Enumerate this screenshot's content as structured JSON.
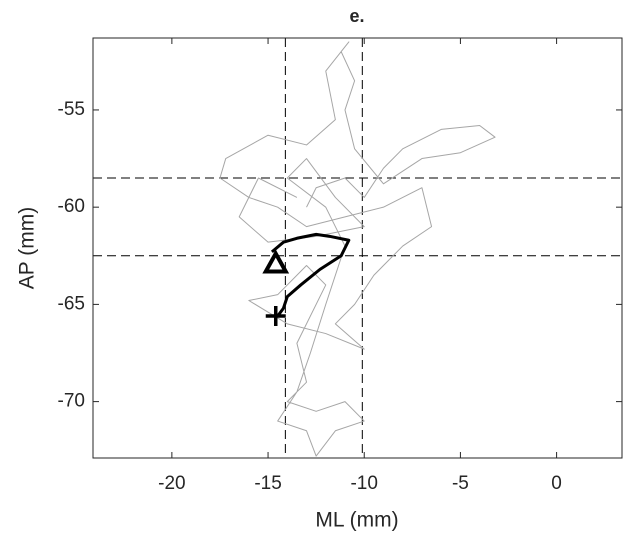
{
  "chart_data": {
    "type": "line",
    "title": "e.",
    "xlabel": "ML (mm)",
    "ylabel": "AP (mm)",
    "xlim": [
      -24.1,
      3.4
    ],
    "ylim": [
      -72.9,
      -51.3
    ],
    "xticks": [
      -20,
      -15,
      -10,
      -5,
      0
    ],
    "yticks": [
      -55,
      -60,
      -65,
      -70
    ],
    "reference_lines": {
      "x": [
        -14.1,
        -10.1
      ],
      "y": [
        -58.5,
        -62.5
      ],
      "color": "#000000"
    },
    "series": [
      {
        "color": "#a6a6a6",
        "width": 1,
        "x": [
          -13,
          -12.5,
          -11,
          -10,
          -9,
          -8,
          -6,
          -4,
          -3.2,
          -5,
          -7,
          -9,
          -10.5,
          -11,
          -10.5,
          -11.2,
          -10.8,
          -12,
          -11.5,
          -13,
          -15,
          -17.2,
          -17.5,
          -16,
          -14.5,
          -13,
          -11,
          -9,
          -7,
          -6.5,
          -8,
          -9.5,
          -10.5,
          -11.5,
          -10,
          -12,
          -14,
          -16,
          -14.5,
          -13,
          -12,
          -13.5,
          -13,
          -14,
          -12.5,
          -11,
          -10,
          -11.5,
          -12.5,
          -13,
          -14.5,
          -13.5,
          -12.8,
          -12,
          -11,
          -12,
          -14,
          -13,
          -11.5,
          -10,
          -12.5,
          -15,
          -16.5,
          -15.5,
          -13.5
        ],
        "values": [
          -60,
          -59,
          -58.5,
          -59.5,
          -58,
          -57,
          -56,
          -55.8,
          -56.4,
          -57.2,
          -57.5,
          -58.8,
          -57,
          -55,
          -53.5,
          -52,
          -51.5,
          -53,
          -55.5,
          -56.8,
          -56.3,
          -57.5,
          -58.5,
          -59.5,
          -60,
          -61,
          -60.5,
          -60,
          -59,
          -61,
          -62,
          -63.5,
          -65,
          -66,
          -67.3,
          -66.5,
          -66,
          -64.8,
          -64.5,
          -63,
          -64,
          -67,
          -69,
          -70,
          -70.5,
          -70,
          -71,
          -71.5,
          -72.8,
          -71.5,
          -71,
          -69.5,
          -67.5,
          -65,
          -62,
          -60,
          -58.5,
          -57.5,
          -59.5,
          -61,
          -61.5,
          -61.8,
          -60.5,
          -58.5,
          -59.5
        ]
      },
      {
        "color": "#000000",
        "width": 3,
        "x": [
          -14.8,
          -14.2,
          -13.5,
          -12.5,
          -11.8,
          -10.8,
          -11.2,
          -12.3,
          -13.3,
          -14.0,
          -14.2,
          -14.5
        ],
        "values": [
          -62.3,
          -61.8,
          -61.6,
          -61.4,
          -61.5,
          -61.7,
          -62.5,
          -63.2,
          -64.0,
          -64.6,
          -65.2,
          -65.6
        ]
      }
    ],
    "markers": [
      {
        "shape": "triangle",
        "x": -14.6,
        "y": -62.9,
        "color": "#000000"
      },
      {
        "shape": "plus",
        "x": -14.6,
        "y": -65.6,
        "color": "#000000"
      }
    ]
  }
}
